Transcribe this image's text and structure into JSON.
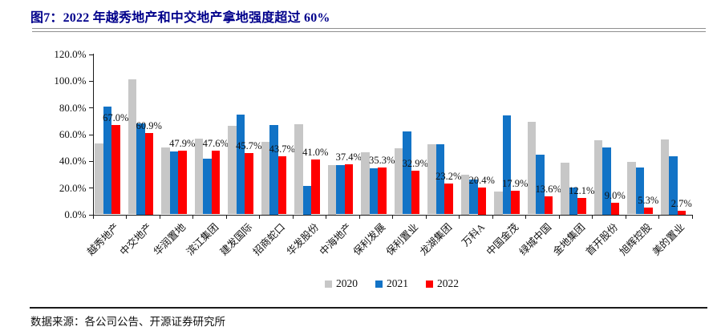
{
  "title": "图7：2022 年越秀地产和中交地产拿地强度超过 60%",
  "source": "数据来源：各公司公告、开源证券研究所",
  "colors": {
    "title": "#00008B",
    "bar_2020": "#C7C7C7",
    "bar_2021": "#1273C6",
    "bar_2022": "#FF0000",
    "axis": "#1a1a1a"
  },
  "chart_data": {
    "type": "bar",
    "title": "2022 年越秀地产和中交地产拿地强度超过 60%",
    "xlabel": "",
    "ylabel": "",
    "ylim": [
      0,
      120
    ],
    "y_tick_labels": [
      "0.0%",
      "20.0%",
      "40.0%",
      "60.0%",
      "80.0%",
      "100.0%",
      "120.0%"
    ],
    "y_tick_values": [
      0,
      20,
      40,
      60,
      80,
      100,
      120
    ],
    "grid": "off",
    "legend_position": "bottom-center",
    "categories": [
      "越秀地产",
      "中交地产",
      "华润置地",
      "滨江集团",
      "建发国际",
      "招商蛇口",
      "华发股份",
      "中海地产",
      "保利发展",
      "保利置业",
      "龙湖集团",
      "万科A",
      "中国金茂",
      "绿城中国",
      "金地集团",
      "首开股份",
      "旭辉控股",
      "美的置业"
    ],
    "series": [
      {
        "name": "2020",
        "color": "#C7C7C7",
        "values": [
          53.2,
          100.9,
          50.0,
          56.8,
          66.5,
          54.3,
          67.3,
          36.9,
          46.5,
          49.4,
          52.3,
          29.7,
          17.4,
          69.4,
          39.0,
          55.5,
          39.5,
          56.1
        ],
        "data_labels": false
      },
      {
        "name": "2021",
        "color": "#1273C6",
        "values": [
          80.9,
          68.4,
          47.0,
          41.9,
          74.5,
          67.2,
          21.3,
          37.1,
          34.4,
          62.0,
          52.7,
          26.2,
          74.2,
          44.6,
          20.1,
          50.1,
          34.9,
          43.8
        ],
        "data_labels": false
      },
      {
        "name": "2022",
        "color": "#FF0000",
        "values": [
          67.0,
          60.9,
          47.9,
          47.6,
          45.7,
          43.7,
          41.0,
          37.4,
          35.3,
          32.9,
          23.2,
          20.4,
          17.9,
          13.6,
          12.1,
          9.0,
          5.3,
          2.7
        ],
        "data_labels": true,
        "data_label_format": "one-decimal-percent"
      }
    ]
  }
}
